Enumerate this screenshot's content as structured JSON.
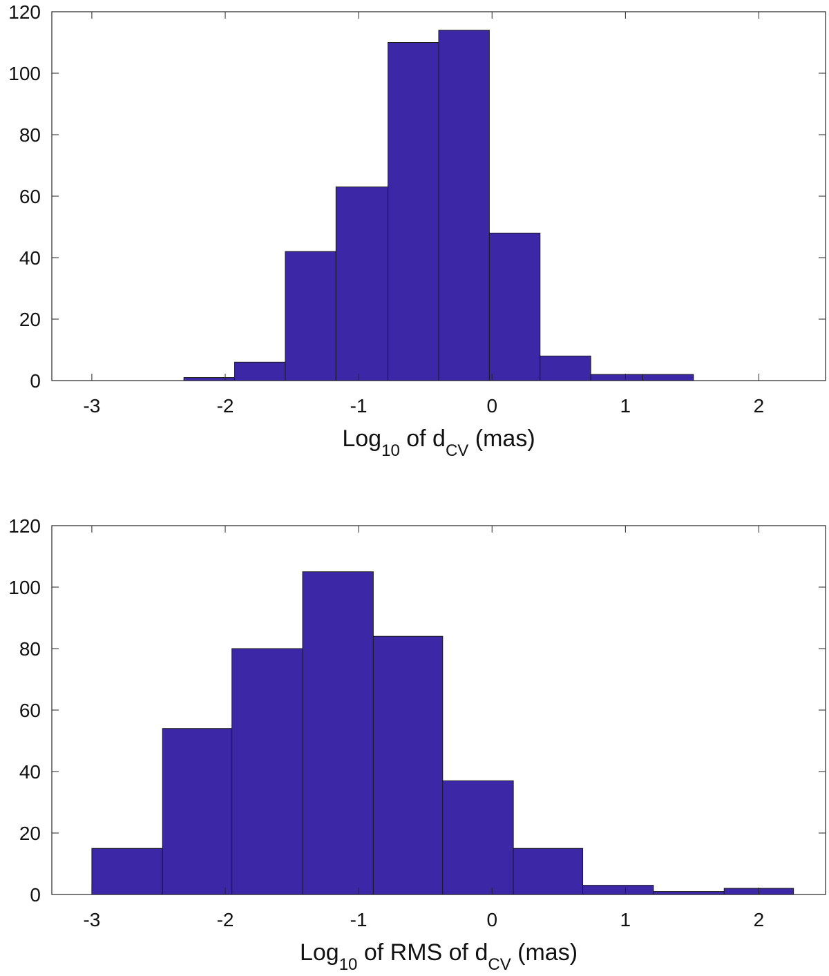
{
  "chart_data": [
    {
      "type": "bar",
      "title": "",
      "xlabel": {
        "prefix": "Log",
        "prefix_sub": "10",
        "middle": " of d",
        "middle_sub": "CV",
        "suffix": " (mas)"
      },
      "ylabel": "",
      "xlim": [
        -3.3,
        2.5
      ],
      "ylim": [
        0,
        120
      ],
      "xticks": [
        "-3",
        "-2",
        "-1",
        "0",
        "1",
        "2"
      ],
      "yticks": [
        "0",
        "20",
        "40",
        "60",
        "80",
        "100",
        "120"
      ],
      "bin_edges": [
        -2.31,
        -1.93,
        -1.55,
        -1.17,
        -0.78,
        -0.4,
        -0.02,
        0.36,
        0.74,
        1.13,
        1.51
      ],
      "values": [
        1,
        6,
        42,
        63,
        110,
        114,
        48,
        8,
        2,
        2
      ],
      "bar_color": "#3c28a6"
    },
    {
      "type": "bar",
      "title": "",
      "xlabel": {
        "prefix": "Log",
        "prefix_sub": "10",
        "middle": " of RMS of d",
        "middle_sub": "CV",
        "suffix": " (mas)"
      },
      "ylabel": "",
      "xlim": [
        -3.3,
        2.5
      ],
      "ylim": [
        0,
        120
      ],
      "xticks": [
        "-3",
        "-2",
        "-1",
        "0",
        "1",
        "2"
      ],
      "yticks": [
        "0",
        "20",
        "40",
        "60",
        "80",
        "100",
        "120"
      ],
      "bin_edges": [
        -3.0,
        -2.47,
        -1.95,
        -1.42,
        -0.89,
        -0.37,
        0.16,
        0.68,
        1.21,
        1.74,
        2.26
      ],
      "values": [
        15,
        54,
        80,
        105,
        84,
        37,
        15,
        3,
        1,
        2
      ],
      "bar_color": "#3c28a6"
    }
  ]
}
